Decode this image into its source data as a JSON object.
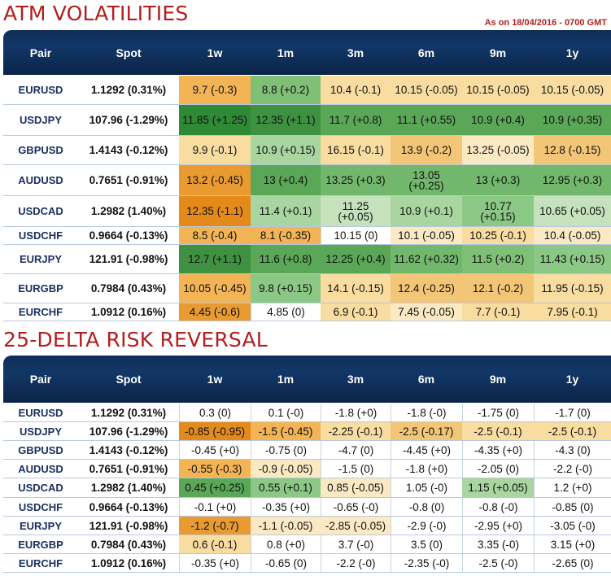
{
  "atm": {
    "title": "ATM VOLATILITIES",
    "as_on": "As on 18/04/2016 - 0700 GMT",
    "headers": [
      "Pair",
      "Spot",
      "1w",
      "1m",
      "3m",
      "6m",
      "9m",
      "1y"
    ],
    "rows": [
      {
        "pair": "EURUSD",
        "spot": "1.1292 (0.31%)",
        "cells": [
          {
            "v": "9.7 (-0.3)",
            "bg": "#f2b454"
          },
          {
            "v": "8.8 (+0.2)",
            "bg": "#7fbf76"
          },
          {
            "v": "10.4 (-0.1)",
            "bg": "#f8dca0"
          },
          {
            "v": "10.15 (-0.05)",
            "bg": "#f8dca0"
          },
          {
            "v": "10.15 (-0.05)",
            "bg": "#f8dca0"
          },
          {
            "v": "10.15 (-0.05)",
            "bg": "#f8dca0"
          }
        ]
      },
      {
        "pair": "USDJPY",
        "spot": "107.96 (-1.29%)",
        "cells": [
          {
            "v": "11.85 (+1.25)",
            "bg": "#2e8a34"
          },
          {
            "v": "12.35 (+1.1)",
            "bg": "#3d9140"
          },
          {
            "v": "11.7 (+0.8)",
            "bg": "#5aa757"
          },
          {
            "v": "11.1 (+0.55)",
            "bg": "#5aa757"
          },
          {
            "v": "10.9 (+0.4)",
            "bg": "#5aa757"
          },
          {
            "v": "10.9 (+0.35)",
            "bg": "#5aa757"
          }
        ]
      },
      {
        "pair": "GBPUSD",
        "spot": "1.4143 (-0.12%)",
        "cells": [
          {
            "v": "9.9 (-0.1)",
            "bg": "#f8dca0"
          },
          {
            "v": "10.9 (+0.15)",
            "bg": "#a8d5a0"
          },
          {
            "v": "16.15 (-0.1)",
            "bg": "#f8dca0"
          },
          {
            "v": "13.9 (-0.2)",
            "bg": "#f3c577"
          },
          {
            "v": "13.25 (-0.05)",
            "bg": "#fbe9c4"
          },
          {
            "v": "12.8 (-0.15)",
            "bg": "#f3c577"
          }
        ]
      },
      {
        "pair": "AUDUSD",
        "spot": "0.7651 (-0.91%)",
        "cells": [
          {
            "v": "13.2 (-0.45)",
            "bg": "#e99a30"
          },
          {
            "v": "13 (+0.4)",
            "bg": "#5aa757"
          },
          {
            "v": "13.25 (+0.3)",
            "bg": "#72b86c"
          },
          {
            "v": "13.05 (+0.25)",
            "bg": "#72b86c"
          },
          {
            "v": "13 (+0.3)",
            "bg": "#72b86c"
          },
          {
            "v": "12.95 (+0.3)",
            "bg": "#72b86c"
          }
        ]
      },
      {
        "pair": "USDCAD",
        "spot": "1.2982 (1.40%)",
        "cells": [
          {
            "v": "12.35 (-1.1)",
            "bg": "#e48a1a"
          },
          {
            "v": "11.4 (+0.1)",
            "bg": "#a8d5a0"
          },
          {
            "v": "11.25 (+0.05)",
            "bg": "#c5e2bd"
          },
          {
            "v": "10.9 (+0.1)",
            "bg": "#a8d5a0"
          },
          {
            "v": "10.77 (+0.15)",
            "bg": "#8cc885"
          },
          {
            "v": "10.65 (+0.05)",
            "bg": "#c5e2bd"
          }
        ]
      },
      {
        "pair": "USDCHF",
        "spot": "0.9664 (-0.13%)",
        "cells": [
          {
            "v": "8.5 (-0.4)",
            "bg": "#f2b454"
          },
          {
            "v": "8.1 (-0.35)",
            "bg": "#f2b454"
          },
          {
            "v": "10.15 (0)",
            "bg": "#ffffff"
          },
          {
            "v": "10.1 (-0.05)",
            "bg": "#fbe9c4"
          },
          {
            "v": "10.25 (-0.1)",
            "bg": "#f8dca0"
          },
          {
            "v": "10.4 (-0.05)",
            "bg": "#fbe9c4"
          }
        ]
      },
      {
        "pair": "EURJPY",
        "spot": "121.91 (-0.98%)",
        "cells": [
          {
            "v": "12.7 (+1.1)",
            "bg": "#3d9140"
          },
          {
            "v": "11.6 (+0.8)",
            "bg": "#5aa757"
          },
          {
            "v": "12.25 (+0.4)",
            "bg": "#5aa757"
          },
          {
            "v": "11.62 (+0.32)",
            "bg": "#72b86c"
          },
          {
            "v": "11.5 (+0.2)",
            "bg": "#7fbf76"
          },
          {
            "v": "11.43 (+0.15)",
            "bg": "#8cc885"
          }
        ]
      },
      {
        "pair": "EURGBP",
        "spot": "0.7984 (0.43%)",
        "cells": [
          {
            "v": "10.05 (-0.45)",
            "bg": "#f2b454"
          },
          {
            "v": "9.8 (+0.15)",
            "bg": "#8cc885"
          },
          {
            "v": "14.1 (-0.15)",
            "bg": "#f8dca0"
          },
          {
            "v": "12.4 (-0.25)",
            "bg": "#f3c577"
          },
          {
            "v": "12.1 (-0.2)",
            "bg": "#f3c577"
          },
          {
            "v": "11.95 (-0.15)",
            "bg": "#f8dca0"
          }
        ]
      },
      {
        "pair": "EURCHF",
        "spot": "1.0912 (0.16%)",
        "cells": [
          {
            "v": "4.45 (-0.6)",
            "bg": "#e99a30"
          },
          {
            "v": "4.85 (0)",
            "bg": "#ffffff"
          },
          {
            "v": "6.9 (-0.1)",
            "bg": "#f8dca0"
          },
          {
            "v": "7.45 (-0.05)",
            "bg": "#fbe9c4"
          },
          {
            "v": "7.7 (-0.1)",
            "bg": "#f8dca0"
          },
          {
            "v": "7.95 (-0.1)",
            "bg": "#f8dca0"
          }
        ]
      }
    ]
  },
  "rr": {
    "title": "25-DELTA RISK REVERSAL",
    "headers": [
      "Pair",
      "Spot",
      "1w",
      "1m",
      "3m",
      "6m",
      "9m",
      "1y"
    ],
    "rows": [
      {
        "pair": "EURUSD",
        "spot": "1.1292 (0.31%)",
        "cells": [
          {
            "v": "0.3 (0)",
            "bg": "#ffffff"
          },
          {
            "v": "0.1 (-0)",
            "bg": "#ffffff"
          },
          {
            "v": "-1.8 (+0)",
            "bg": "#ffffff"
          },
          {
            "v": "-1.8 (-0)",
            "bg": "#ffffff"
          },
          {
            "v": "-1.75 (0)",
            "bg": "#ffffff"
          },
          {
            "v": "-1.7 (0)",
            "bg": "#ffffff"
          }
        ]
      },
      {
        "pair": "USDJPY",
        "spot": "107.96 (-1.29%)",
        "cells": [
          {
            "v": "-0.85 (-0.95)",
            "bg": "#e48a1a"
          },
          {
            "v": "-1.5 (-0.45)",
            "bg": "#f2b454"
          },
          {
            "v": "-2.25 (-0.1)",
            "bg": "#f8dca0"
          },
          {
            "v": "-2.5 (-0.17)",
            "bg": "#f3c577"
          },
          {
            "v": "-2.5 (-0.1)",
            "bg": "#f8dca0"
          },
          {
            "v": "-2.5 (-0.1)",
            "bg": "#f8dca0"
          }
        ]
      },
      {
        "pair": "GBPUSD",
        "spot": "1.4143 (-0.12%)",
        "cells": [
          {
            "v": "-0.45 (+0)",
            "bg": "#ffffff"
          },
          {
            "v": "-0.75 (0)",
            "bg": "#ffffff"
          },
          {
            "v": "-4.7 (0)",
            "bg": "#ffffff"
          },
          {
            "v": "-4.45 (+0)",
            "bg": "#ffffff"
          },
          {
            "v": "-4.35 (+0)",
            "bg": "#ffffff"
          },
          {
            "v": "-4.3 (0)",
            "bg": "#ffffff"
          }
        ]
      },
      {
        "pair": "AUDUSD",
        "spot": "0.7651 (-0.91%)",
        "cells": [
          {
            "v": "-0.55 (-0.3)",
            "bg": "#f2b454"
          },
          {
            "v": "-0.9 (-0.05)",
            "bg": "#fbe9c4"
          },
          {
            "v": "-1.5 (0)",
            "bg": "#ffffff"
          },
          {
            "v": "-1.8 (+0)",
            "bg": "#ffffff"
          },
          {
            "v": "-2.05 (0)",
            "bg": "#ffffff"
          },
          {
            "v": "-2.2 (-0)",
            "bg": "#ffffff"
          }
        ]
      },
      {
        "pair": "USDCAD",
        "spot": "1.2982 (1.40%)",
        "cells": [
          {
            "v": "0.45 (+0.25)",
            "bg": "#5aa757"
          },
          {
            "v": "0.55 (+0.1)",
            "bg": "#8cc885"
          },
          {
            "v": "0.85 (-0.05)",
            "bg": "#fbe9c4"
          },
          {
            "v": "1.05 (-0)",
            "bg": "#ffffff"
          },
          {
            "v": "1.15 (+0.05)",
            "bg": "#a8d5a0"
          },
          {
            "v": "1.2 (+0)",
            "bg": "#ffffff"
          }
        ]
      },
      {
        "pair": "USDCHF",
        "spot": "0.9664 (-0.13%)",
        "cells": [
          {
            "v": "-0.1 (+0)",
            "bg": "#ffffff"
          },
          {
            "v": "-0.35 (+0)",
            "bg": "#ffffff"
          },
          {
            "v": "-0.65 (-0)",
            "bg": "#ffffff"
          },
          {
            "v": "-0.8 (0)",
            "bg": "#ffffff"
          },
          {
            "v": "-0.8 (-0)",
            "bg": "#ffffff"
          },
          {
            "v": "-0.85 (0)",
            "bg": "#ffffff"
          }
        ]
      },
      {
        "pair": "EURJPY",
        "spot": "121.91 (-0.98%)",
        "cells": [
          {
            "v": "-1.2 (-0.7)",
            "bg": "#e99a30"
          },
          {
            "v": "-1.1 (-0.05)",
            "bg": "#fbe9c4"
          },
          {
            "v": "-2.85 (-0.05)",
            "bg": "#fbe9c4"
          },
          {
            "v": "-2.9 (-0)",
            "bg": "#ffffff"
          },
          {
            "v": "-2.95 (+0)",
            "bg": "#ffffff"
          },
          {
            "v": "-3.05 (-0)",
            "bg": "#ffffff"
          }
        ]
      },
      {
        "pair": "EURGBP",
        "spot": "0.7984 (0.43%)",
        "cells": [
          {
            "v": "0.6 (-0.1)",
            "bg": "#f8dca0"
          },
          {
            "v": "0.8 (+0)",
            "bg": "#ffffff"
          },
          {
            "v": "3.7 (-0)",
            "bg": "#ffffff"
          },
          {
            "v": "3.5 (0)",
            "bg": "#ffffff"
          },
          {
            "v": "3.35 (-0)",
            "bg": "#ffffff"
          },
          {
            "v": "3.15 (+0)",
            "bg": "#ffffff"
          }
        ]
      },
      {
        "pair": "EURCHF",
        "spot": "1.0912 (0.16%)",
        "cells": [
          {
            "v": "-0.35 (+0)",
            "bg": "#ffffff"
          },
          {
            "v": "-0.65 (0)",
            "bg": "#ffffff"
          },
          {
            "v": "-2.2 (-0)",
            "bg": "#ffffff"
          },
          {
            "v": "-2.35 (-0)",
            "bg": "#ffffff"
          },
          {
            "v": "-2.5 (-0)",
            "bg": "#ffffff"
          },
          {
            "v": "-2.65 (0)",
            "bg": "#ffffff"
          }
        ]
      }
    ]
  }
}
